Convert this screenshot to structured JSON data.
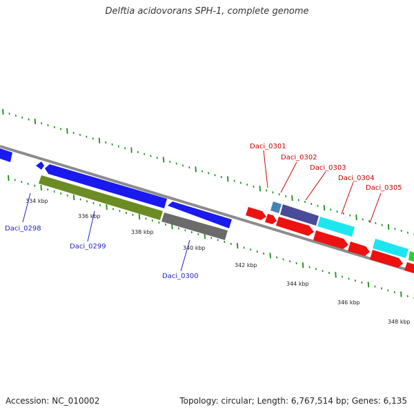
{
  "title": "Delftia acidovorans SPH-1, complete genome",
  "footer": {
    "accession": "Accession: NC_010002",
    "summary": "Topology: circular; Length: 6,767,514 bp; Genes: 6,135"
  },
  "colors": {
    "backbone": "#8c8c8c",
    "tick": "#1a8a1a",
    "label_blue": "#1f1fbf",
    "label_red": "#cc0000",
    "gene_blue": "#1a1aee",
    "gene_green": "#6b8c23",
    "gene_gray": "#6b6b6b",
    "gene_red": "#ee1111",
    "gene_cyan": "#1ee6ee",
    "gene_steel": "#4682b4",
    "gene_slate": "#4a4a9a"
  },
  "scale_labels": [
    "334 kbp",
    "336 kbp",
    "338 kbp",
    "340 kbp",
    "342 kbp",
    "344 kbp",
    "346 kbp",
    "348 kbp"
  ],
  "gene_labels": [
    "Daci_0298",
    "Daci_0299",
    "Daci_0300",
    "Daci_0301",
    "Daci_0302",
    "Daci_0303",
    "Daci_0304",
    "Daci_0305"
  ]
}
